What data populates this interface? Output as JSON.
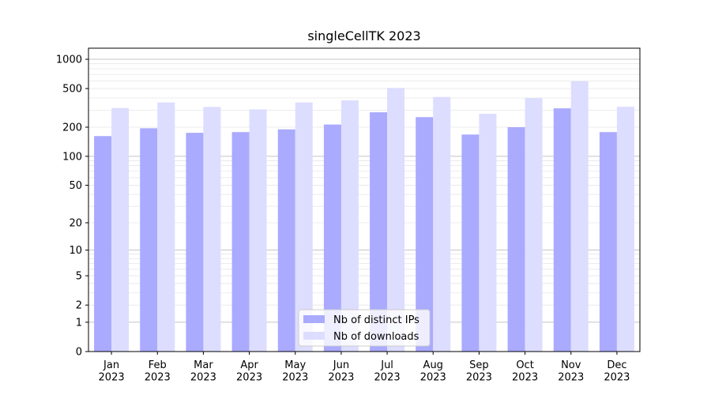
{
  "chart_data": {
    "type": "bar",
    "title": "singleCellTK 2023",
    "xlabel": "",
    "ylabel": "",
    "y_scale": "symlog",
    "ylim": [
      0,
      1300
    ],
    "y_ticks": [
      0,
      1,
      2,
      5,
      10,
      20,
      50,
      100,
      200,
      500,
      1000
    ],
    "y_tick_labels": [
      "0",
      "1",
      "2",
      "5",
      "10",
      "20",
      "50",
      "100",
      "200",
      "500",
      "1000"
    ],
    "grid": true,
    "legend_position": "bottom-center",
    "categories": [
      "Jan\n2023",
      "Feb\n2023",
      "Mar\n2023",
      "Apr\n2023",
      "May\n2023",
      "Jun\n2023",
      "Jul\n2023",
      "Aug\n2023",
      "Sep\n2023",
      "Oct\n2023",
      "Nov\n2023",
      "Dec\n2023"
    ],
    "series": [
      {
        "name": "Nb of distinct IPs",
        "color": "#aaaaff",
        "values": [
          162,
          195,
          175,
          178,
          190,
          213,
          285,
          254,
          168,
          200,
          313,
          178
        ]
      },
      {
        "name": "Nb of downloads",
        "color": "#ddddff",
        "values": [
          315,
          360,
          323,
          305,
          360,
          378,
          508,
          410,
          275,
          400,
          594,
          325
        ]
      }
    ]
  }
}
